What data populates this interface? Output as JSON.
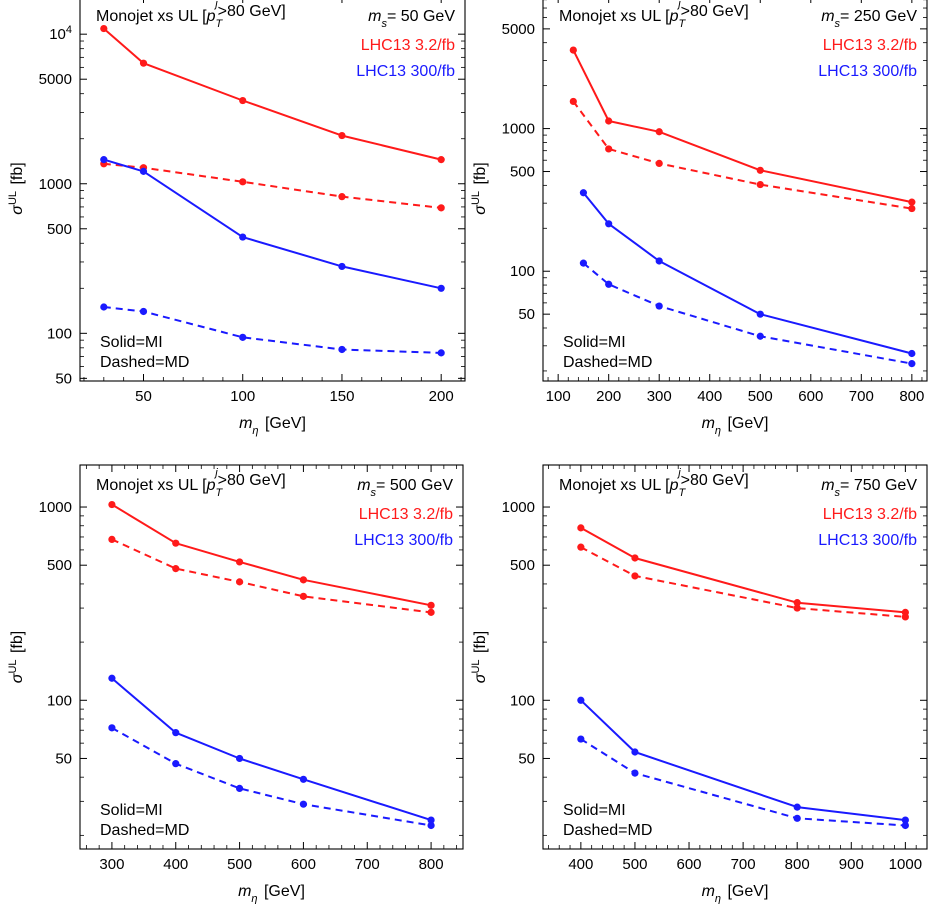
{
  "colors": {
    "red": "#ff1a1a",
    "blue": "#1a1aff",
    "frame": "#000000"
  },
  "chart_data": [
    {
      "type": "line",
      "xlabel": "m_η [GeV]",
      "ylabel": "σ^UL [fb]",
      "ylog": true,
      "xlim": [
        18,
        212
      ],
      "ylim": [
        48,
        18000
      ],
      "xticks": [
        50,
        100,
        150,
        200
      ],
      "yticks": [
        {
          "v": 50,
          "label": "50"
        },
        {
          "v": 100,
          "label": "100"
        },
        {
          "v": 500,
          "label": "500"
        },
        {
          "v": 1000,
          "label": "1000"
        },
        {
          "v": 5000,
          "label": "5000"
        },
        {
          "v": 10000,
          "label": "10^4"
        }
      ],
      "title": "Monojet xs UL [p_T^j>80 GeV]",
      "mass_label": "m_s= 50 GeV",
      "legend": [
        "LHC13 3.2/fb",
        "LHC13 300/fb"
      ],
      "style_note": [
        "Solid=MI",
        "Dashed=MD"
      ],
      "series": [
        {
          "name": "LHC13 3.2/fb",
          "style": "solid",
          "color": "red",
          "x": [
            30,
            50,
            100,
            150,
            200
          ],
          "y": [
            10900,
            6400,
            3600,
            2100,
            1450
          ]
        },
        {
          "style": "dashed",
          "color": "red",
          "x": [
            30,
            50,
            100,
            150,
            200
          ],
          "y": [
            1360,
            1280,
            1030,
            820,
            690
          ]
        },
        {
          "name": "LHC13 300/fb",
          "style": "solid",
          "color": "blue",
          "x": [
            30,
            50,
            100,
            150,
            200
          ],
          "y": [
            1450,
            1210,
            440,
            280,
            200
          ]
        },
        {
          "style": "dashed",
          "color": "blue",
          "x": [
            30,
            50,
            100,
            150,
            200
          ],
          "y": [
            150,
            140,
            94,
            78,
            74
          ]
        }
      ]
    },
    {
      "type": "line",
      "xlabel": "m_η [GeV]",
      "ylabel": "σ^UL [fb]",
      "ylog": true,
      "xlim": [
        70,
        830
      ],
      "ylim": [
        17,
        8500
      ],
      "xticks": [
        100,
        200,
        300,
        400,
        500,
        600,
        700,
        800
      ],
      "yticks": [
        {
          "v": 50,
          "label": "50"
        },
        {
          "v": 100,
          "label": "100"
        },
        {
          "v": 500,
          "label": "500"
        },
        {
          "v": 1000,
          "label": "1000"
        },
        {
          "v": 5000,
          "label": "5000"
        }
      ],
      "title": "Monojet xs UL [p_T^j>80 GeV]",
      "mass_label": "m_s= 250 GeV",
      "legend": [
        "LHC13 3.2/fb",
        "LHC13 300/fb"
      ],
      "style_note": [
        "Solid=MI",
        "Dashed=MD"
      ],
      "series": [
        {
          "name": "LHC13 3.2/fb",
          "style": "solid",
          "color": "red",
          "x": [
            130,
            200,
            300,
            500,
            800
          ],
          "y": [
            3550,
            1130,
            950,
            510,
            305
          ]
        },
        {
          "style": "dashed",
          "color": "red",
          "x": [
            130,
            200,
            300,
            500,
            800
          ],
          "y": [
            1550,
            720,
            570,
            405,
            275
          ]
        },
        {
          "name": "LHC13 300/fb",
          "style": "solid",
          "color": "blue",
          "x": [
            150,
            200,
            300,
            500,
            800
          ],
          "y": [
            355,
            215,
            118,
            50,
            26.5
          ]
        },
        {
          "style": "dashed",
          "color": "blue",
          "x": [
            150,
            200,
            300,
            500,
            800
          ],
          "y": [
            114,
            81,
            57,
            35,
            22.5
          ]
        }
      ]
    },
    {
      "type": "line",
      "xlabel": "m_η [GeV]",
      "ylabel": "σ^UL [fb]",
      "ylog": true,
      "xlim": [
        250,
        850
      ],
      "ylim": [
        17,
        1650
      ],
      "xticks": [
        300,
        400,
        500,
        600,
        700,
        800
      ],
      "yticks": [
        {
          "v": 50,
          "label": "50"
        },
        {
          "v": 100,
          "label": "100"
        },
        {
          "v": 500,
          "label": "500"
        },
        {
          "v": 1000,
          "label": "1000"
        }
      ],
      "title": "Monojet xs UL [p_T^j>80 GeV]",
      "mass_label": "m_s= 500 GeV",
      "legend": [
        "LHC13 3.2/fb",
        "LHC13 300/fb"
      ],
      "style_note": [
        "Solid=MI",
        "Dashed=MD"
      ],
      "series": [
        {
          "name": "LHC13 3.2/fb",
          "style": "solid",
          "color": "red",
          "x": [
            300,
            400,
            500,
            600,
            800
          ],
          "y": [
            1030,
            650,
            520,
            420,
            310
          ]
        },
        {
          "style": "dashed",
          "color": "red",
          "x": [
            300,
            400,
            500,
            600,
            800
          ],
          "y": [
            680,
            480,
            410,
            345,
            285
          ]
        },
        {
          "name": "LHC13 300/fb",
          "style": "solid",
          "color": "blue",
          "x": [
            300,
            400,
            500,
            600,
            800
          ],
          "y": [
            130,
            68,
            50,
            39,
            24
          ]
        },
        {
          "style": "dashed",
          "color": "blue",
          "x": [
            300,
            400,
            500,
            600,
            800
          ],
          "y": [
            72,
            47,
            35,
            29,
            22.5
          ]
        }
      ]
    },
    {
      "type": "line",
      "xlabel": "m_η [GeV]",
      "ylabel": "σ^UL [fb]",
      "ylog": true,
      "xlim": [
        330,
        1040
      ],
      "ylim": [
        17,
        1650
      ],
      "xticks": [
        400,
        500,
        600,
        700,
        800,
        900,
        1000
      ],
      "yticks": [
        {
          "v": 50,
          "label": "50"
        },
        {
          "v": 100,
          "label": "100"
        },
        {
          "v": 500,
          "label": "500"
        },
        {
          "v": 1000,
          "label": "1000"
        }
      ],
      "title": "Monojet xs UL [p_T^j>80 GeV]",
      "mass_label": "m_s= 750 GeV",
      "legend": [
        "LHC13 3.2/fb",
        "LHC13 300/fb"
      ],
      "style_note": [
        "Solid=MI",
        "Dashed=MD"
      ],
      "series": [
        {
          "name": "LHC13 3.2/fb",
          "style": "solid",
          "color": "red",
          "x": [
            400,
            500,
            800,
            1000
          ],
          "y": [
            780,
            545,
            320,
            285
          ]
        },
        {
          "style": "dashed",
          "color": "red",
          "x": [
            400,
            500,
            800,
            1000
          ],
          "y": [
            620,
            440,
            300,
            270
          ]
        },
        {
          "name": "LHC13 300/fb",
          "style": "solid",
          "color": "blue",
          "x": [
            400,
            500,
            800,
            1000
          ],
          "y": [
            100,
            54,
            28,
            24
          ]
        },
        {
          "style": "dashed",
          "color": "blue",
          "x": [
            400,
            500,
            800,
            1000
          ],
          "y": [
            63,
            42,
            24.5,
            22.5
          ]
        }
      ]
    }
  ]
}
